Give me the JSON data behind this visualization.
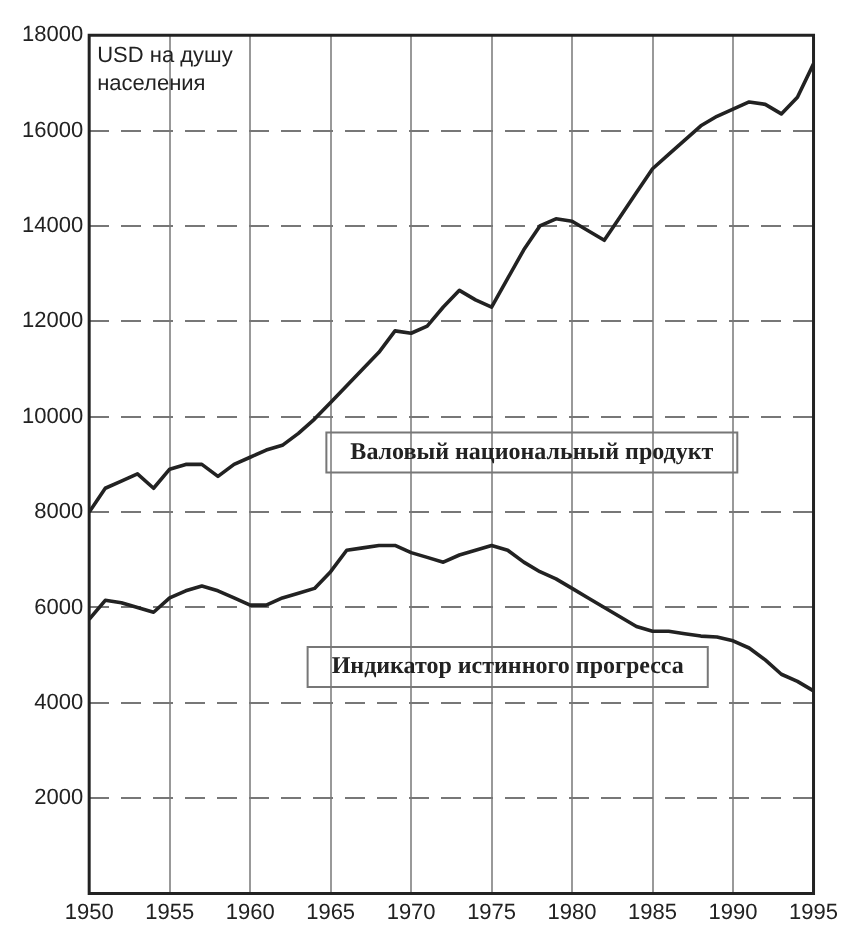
{
  "chart_data": {
    "type": "line",
    "ylabel": "USD на душу населения",
    "x": [
      1950,
      1951,
      1952,
      1953,
      1954,
      1955,
      1956,
      1957,
      1958,
      1959,
      1960,
      1961,
      1962,
      1963,
      1964,
      1965,
      1966,
      1967,
      1968,
      1969,
      1970,
      1971,
      1972,
      1973,
      1974,
      1975,
      1976,
      1977,
      1978,
      1979,
      1980,
      1981,
      1982,
      1983,
      1984,
      1985,
      1986,
      1987,
      1988,
      1989,
      1990,
      1991,
      1992,
      1993,
      1994,
      1995
    ],
    "series": [
      {
        "name": "Валовый национальный продукт",
        "color": "#222222",
        "values": [
          8000,
          8500,
          8650,
          8800,
          8500,
          8900,
          9000,
          9000,
          8750,
          9000,
          9150,
          9300,
          9400,
          9650,
          9950,
          10300,
          10650,
          11000,
          11350,
          11800,
          11750,
          11900,
          12300,
          12650,
          12450,
          12300,
          12900,
          13500,
          14000,
          14150,
          14100,
          13900,
          13700,
          14200,
          14700,
          15200,
          15500,
          15800,
          16100,
          16300,
          16450,
          16600,
          16550,
          16350,
          16700,
          17400
        ]
      },
      {
        "name": "Индикатор истинного прогресса",
        "color": "#222222",
        "values": [
          5750,
          6150,
          6100,
          6000,
          5900,
          6200,
          6350,
          6450,
          6350,
          6200,
          6050,
          6050,
          6200,
          6300,
          6400,
          6750,
          7200,
          7250,
          7300,
          7300,
          7150,
          7050,
          6950,
          7100,
          7200,
          7300,
          7200,
          6950,
          6750,
          6600,
          6400,
          6200,
          6000,
          5800,
          5600,
          5500,
          5500,
          5450,
          5400,
          5380,
          5300,
          5150,
          4900,
          4600,
          4450,
          4250
        ]
      }
    ],
    "xlim": [
      1950,
      1995
    ],
    "xticks": [
      1950,
      1955,
      1960,
      1965,
      1970,
      1975,
      1980,
      1985,
      1990,
      1995
    ],
    "ylim": [
      0,
      18000
    ],
    "yticks": [
      2000,
      4000,
      6000,
      8000,
      10000,
      12000,
      14000,
      16000,
      18000
    ],
    "grid": true,
    "legend": false,
    "marker": "none",
    "line_style": "solid"
  }
}
